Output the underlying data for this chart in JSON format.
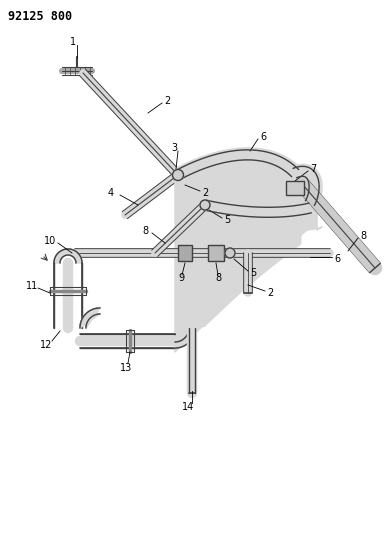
{
  "title": "92125 800",
  "bg_color": "#ffffff",
  "line_color": "#404040",
  "label_color": "#000000",
  "lw_tube": 3.5,
  "lw_inner": 1.5,
  "lw_label": 0.6,
  "fig_width": 3.89,
  "fig_height": 5.33,
  "dpi": 100
}
